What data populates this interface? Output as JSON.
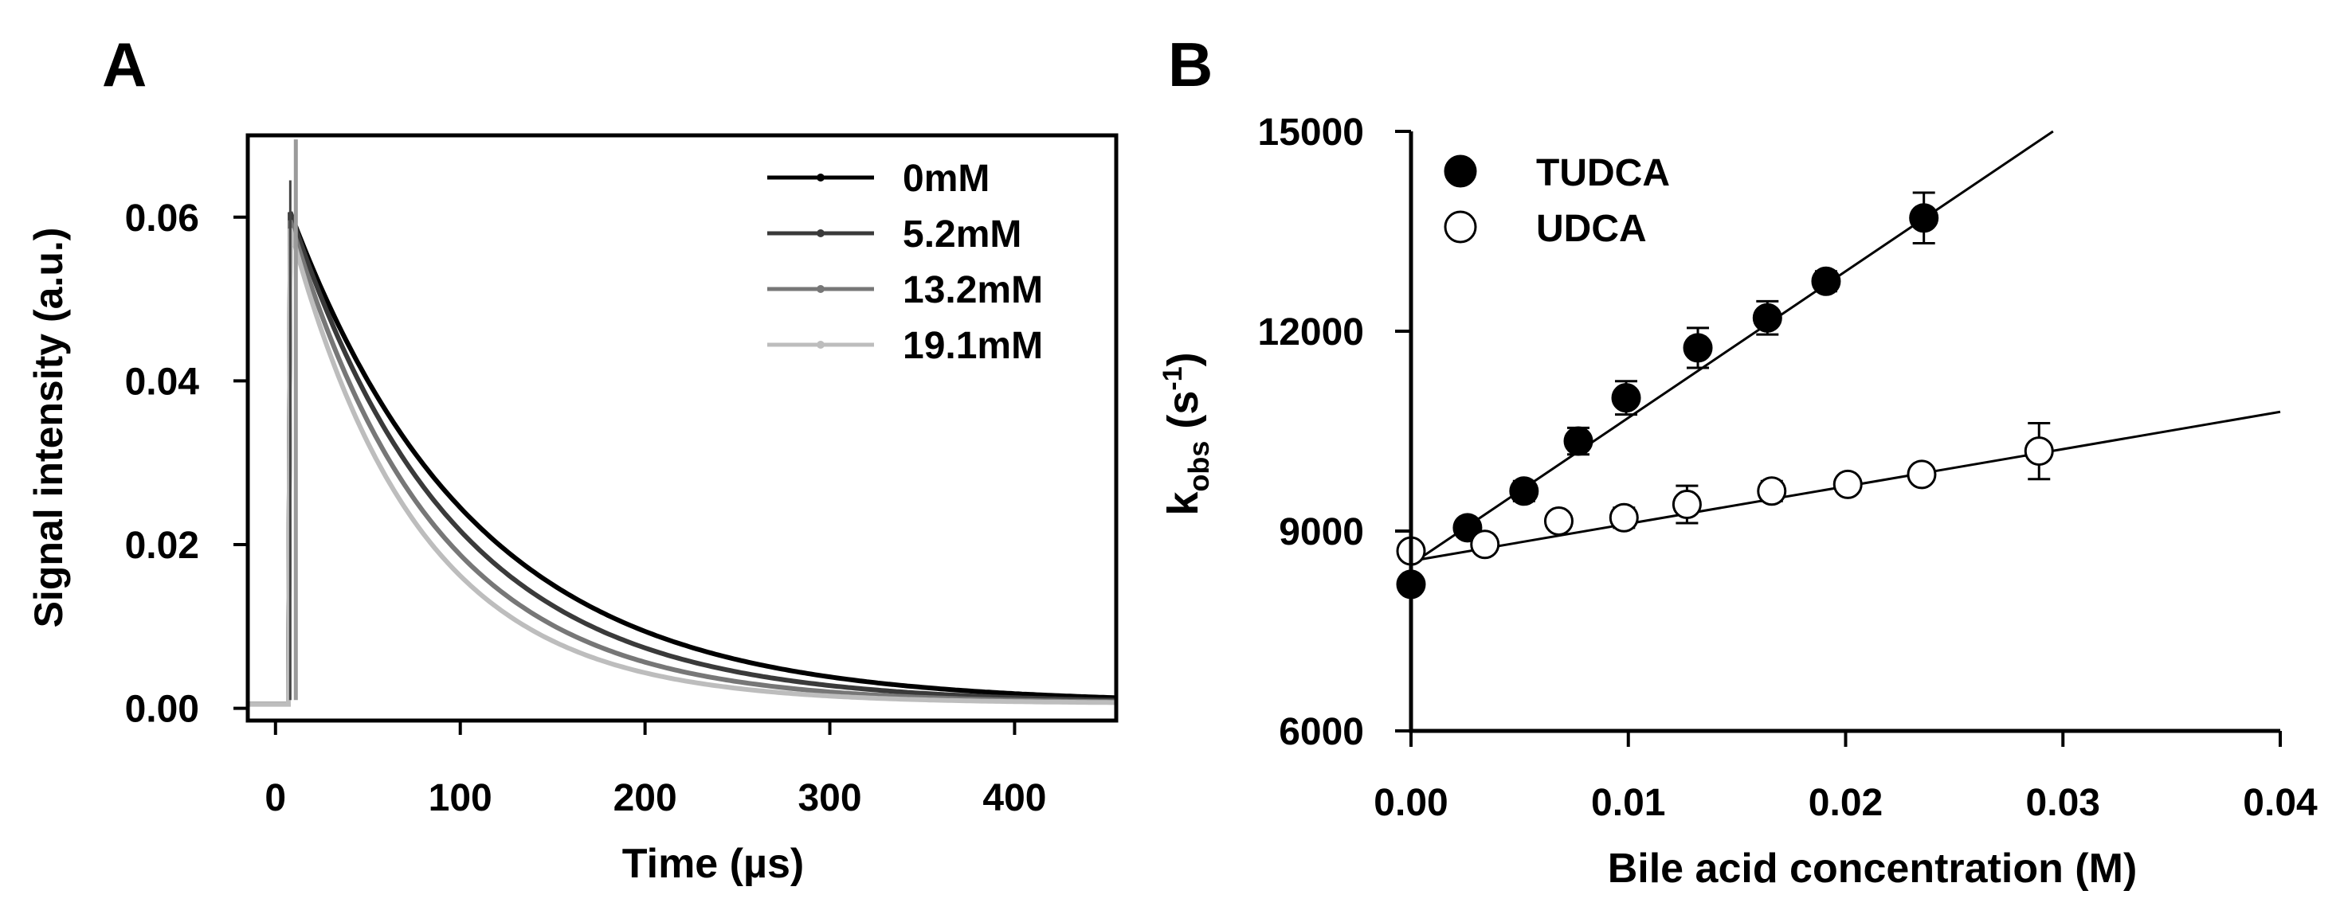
{
  "chart_data": [
    {
      "type": "line",
      "panel_label": "A",
      "title": "",
      "xlabel": "Time (µs)",
      "ylabel": "Signal intensity (a.u.)",
      "xlim": [
        -15,
        455
      ],
      "ylim": [
        -0.0015,
        0.07
      ],
      "xticks": [
        0,
        100,
        200,
        300,
        400
      ],
      "yticks": [
        0.0,
        0.02,
        0.04,
        0.06
      ],
      "xtick_labels": [
        "0",
        "100",
        "200",
        "300",
        "400"
      ],
      "ytick_labels": [
        "0.00",
        "0.02",
        "0.04",
        "0.06"
      ],
      "legend_position": "top-right",
      "model": "single-exponential decay after laser pulse at t = 8 µs",
      "series": [
        {
          "name": "0mM",
          "color": "#000000",
          "peak": 0.06,
          "tau_us": 100
        },
        {
          "name": "5.2mM",
          "color": "#3a3a3a",
          "peak": 0.06,
          "tau_us": 88
        },
        {
          "name": "13.2mM",
          "color": "#777777",
          "peak": 0.059,
          "tau_us": 78
        },
        {
          "name": "19.1mM",
          "color": "#bdbdbd",
          "peak": 0.058,
          "tau_us": 70
        }
      ]
    },
    {
      "type": "scatter",
      "panel_label": "B",
      "title": "",
      "xlabel": "Bile acid concentration (M)",
      "ylabel_main": "k",
      "ylabel_sub": "obs",
      "ylabel_tail": " (s",
      "ylabel_sup": "-1",
      "ylabel_end": ")",
      "xlim": [
        0,
        0.04
      ],
      "ylim": [
        6000,
        15000
      ],
      "xticks": [
        0.0,
        0.01,
        0.02,
        0.03,
        0.04
      ],
      "yticks": [
        6000,
        9000,
        12000,
        15000
      ],
      "xtick_labels": [
        "0.00",
        "0.01",
        "0.02",
        "0.03",
        "0.04"
      ],
      "ytick_labels": [
        "6000",
        "9000",
        "12000",
        "15000"
      ],
      "legend_position": "top-left",
      "series": [
        {
          "name": "TUDCA",
          "marker": "filled-circle",
          "x": [
            0.0,
            0.0026,
            0.0052,
            0.0077,
            0.0099,
            0.0132,
            0.0164,
            0.0191,
            0.0236
          ],
          "y": [
            8200,
            9050,
            9600,
            10350,
            11000,
            11750,
            12200,
            12750,
            13700
          ],
          "err": [
            120,
            130,
            150,
            200,
            250,
            300,
            250,
            150,
            380
          ],
          "fit": {
            "slope": 220000,
            "intercept": 8500
          }
        },
        {
          "name": "UDCA",
          "marker": "open-circle",
          "x": [
            0.0,
            0.0034,
            0.0068,
            0.0098,
            0.0127,
            0.0166,
            0.0201,
            0.0235,
            0.0289
          ],
          "y": [
            8700,
            8800,
            9150,
            9200,
            9400,
            9600,
            9700,
            9850,
            10200
          ],
          "err": [
            100,
            120,
            120,
            150,
            280,
            150,
            120,
            120,
            420
          ],
          "fit": {
            "slope": 56000,
            "intercept": 8550
          }
        }
      ]
    }
  ]
}
